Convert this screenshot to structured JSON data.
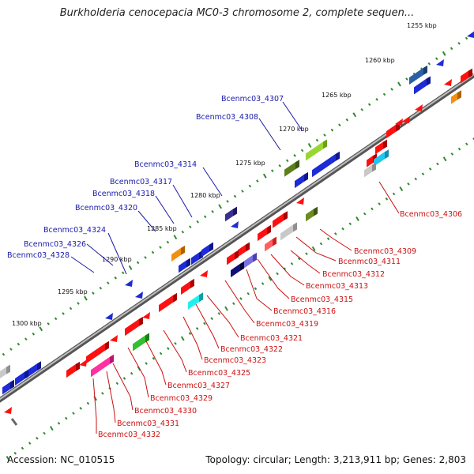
{
  "title": "Burkholderia cenocepacia MC0-3 chromosome 2, complete sequen...",
  "footer": {
    "accession": "Accession: NC_010515",
    "summary": "Topology: circular; Length: 3,213,911 bp; Genes: 2,803"
  },
  "colors": {
    "axis": "#8a8a8a",
    "tick_dots": "#2e8b2e",
    "forward_label": "#1a1aaa",
    "reverse_label": "#cc1111"
  },
  "scale_labels": [
    "1255 kbp",
    "1260 kbp",
    "1265 kbp",
    "1270 kbp",
    "1275 kbp",
    "1280 kbp",
    "1285 kbp",
    "1290 kbp",
    "1295 kbp",
    "1300 kbp"
  ],
  "forward_labels": [
    "Bcenmc03_4307",
    "Bcenmc03_4308",
    "Bcenmc03_4314",
    "Bcenmc03_4317",
    "Bcenmc03_4318",
    "Bcenmc03_4320",
    "Bcenmc03_4324",
    "Bcenmc03_4326",
    "Bcenmc03_4328"
  ],
  "reverse_labels": [
    "Bcenmc03_4306",
    "Bcenmc03_4309",
    "Bcenmc03_4311",
    "Bcenmc03_4312",
    "Bcenmc03_4313",
    "Bcenmc03_4315",
    "Bcenmc03_4316",
    "Bcenmc03_4319",
    "Bcenmc03_4321",
    "Bcenmc03_4322",
    "Bcenmc03_4323",
    "Bcenmc03_4325",
    "Bcenmc03_4327",
    "Bcenmc03_4329",
    "Bcenmc03_4330",
    "Bcenmc03_4331",
    "Bcenmc03_4332"
  ]
}
